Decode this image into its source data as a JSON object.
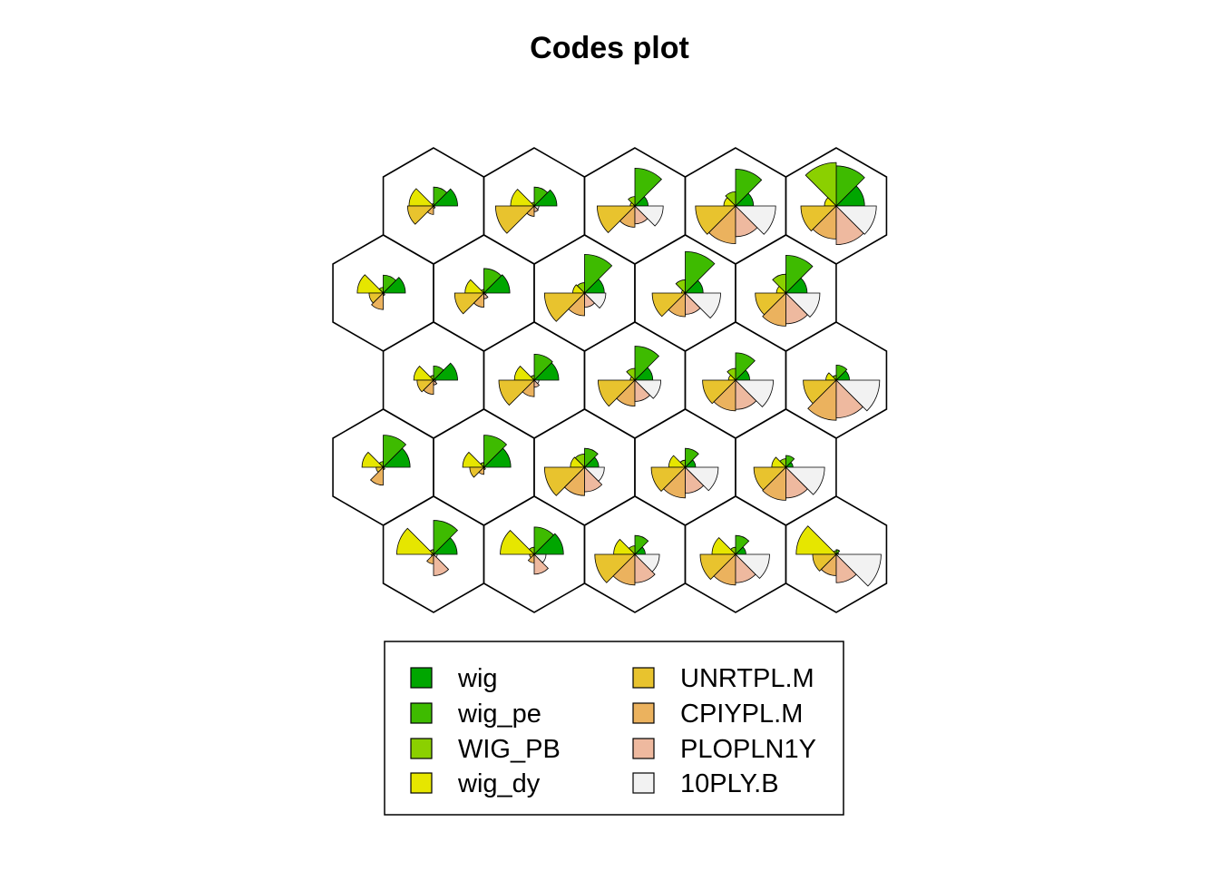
{
  "chart_data": {
    "type": "som-codes",
    "title": "Codes plot",
    "grid": {
      "rows": 5,
      "cols": 5,
      "topology": "hexagonal"
    },
    "series": [
      {
        "name": "wig",
        "color": "#00A600"
      },
      {
        "name": "wig_pe",
        "color": "#3EBB00"
      },
      {
        "name": "WIG_PB",
        "color": "#8BD000"
      },
      {
        "name": "wig_dy",
        "color": "#E6E600"
      },
      {
        "name": "UNRTPL.M",
        "color": "#E8C32E"
      },
      {
        "name": "CPIYPL.M",
        "color": "#EBB25E"
      },
      {
        "name": "PLOPLN1Y",
        "color": "#EEB99F"
      },
      {
        "name": "10PLY.B",
        "color": "#F2F2F2"
      }
    ],
    "units": [
      {
        "row": 1,
        "col": 1,
        "values": [
          0.51,
          0.4,
          0.05,
          0.52,
          0.55,
          0.18,
          0.05,
          0.02
        ]
      },
      {
        "row": 1,
        "col": 2,
        "values": [
          0.48,
          0.4,
          0.08,
          0.5,
          0.82,
          0.22,
          0.12,
          0.1
        ]
      },
      {
        "row": 1,
        "col": 3,
        "values": [
          0.28,
          0.8,
          0.2,
          0.1,
          0.8,
          0.45,
          0.38,
          0.6
        ]
      },
      {
        "row": 1,
        "col": 4,
        "values": [
          0.38,
          0.78,
          0.3,
          0.25,
          0.85,
          0.8,
          0.65,
          0.85
        ]
      },
      {
        "row": 1,
        "col": 5,
        "values": [
          0.6,
          0.85,
          0.92,
          0.25,
          0.75,
          0.7,
          0.82,
          0.85
        ]
      },
      {
        "row": 2,
        "col": 1,
        "values": [
          0.47,
          0.38,
          0.12,
          0.55,
          0.3,
          0.35,
          0.05,
          0.02
        ]
      },
      {
        "row": 2,
        "col": 2,
        "values": [
          0.55,
          0.52,
          0.08,
          0.4,
          0.62,
          0.3,
          0.12,
          0.05
        ]
      },
      {
        "row": 2,
        "col": 3,
        "values": [
          0.42,
          0.82,
          0.22,
          0.25,
          0.85,
          0.48,
          0.3,
          0.45
        ]
      },
      {
        "row": 2,
        "col": 4,
        "values": [
          0.38,
          0.88,
          0.28,
          0.08,
          0.7,
          0.5,
          0.45,
          0.75
        ]
      },
      {
        "row": 2,
        "col": 5,
        "values": [
          0.45,
          0.8,
          0.4,
          0.2,
          0.65,
          0.7,
          0.65,
          0.72
        ]
      },
      {
        "row": 3,
        "col": 1,
        "values": [
          0.51,
          0.3,
          0.1,
          0.42,
          0.35,
          0.3,
          0.1,
          0.05
        ]
      },
      {
        "row": 3,
        "col": 2,
        "values": [
          0.52,
          0.55,
          0.1,
          0.42,
          0.75,
          0.35,
          0.15,
          0.1
        ]
      },
      {
        "row": 3,
        "col": 3,
        "values": [
          0.38,
          0.72,
          0.25,
          0.1,
          0.78,
          0.55,
          0.45,
          0.55
        ]
      },
      {
        "row": 3,
        "col": 4,
        "values": [
          0.3,
          0.58,
          0.25,
          0.15,
          0.7,
          0.65,
          0.62,
          0.8
        ]
      },
      {
        "row": 3,
        "col": 5,
        "values": [
          0.28,
          0.32,
          0.1,
          0.22,
          0.7,
          0.85,
          0.8,
          0.92
        ]
      },
      {
        "row": 4,
        "col": 1,
        "values": [
          0.57,
          0.68,
          0.12,
          0.45,
          0.15,
          0.38,
          0.05,
          0.02
        ]
      },
      {
        "row": 4,
        "col": 2,
        "values": [
          0.57,
          0.68,
          0.1,
          0.45,
          0.3,
          0.15,
          0.05,
          0.02
        ]
      },
      {
        "row": 4,
        "col": 3,
        "values": [
          0.3,
          0.4,
          0.28,
          0.3,
          0.85,
          0.6,
          0.52,
          0.42
        ]
      },
      {
        "row": 4,
        "col": 4,
        "values": [
          0.22,
          0.4,
          0.15,
          0.35,
          0.72,
          0.65,
          0.55,
          0.7
        ]
      },
      {
        "row": 4,
        "col": 5,
        "values": [
          0.15,
          0.25,
          0.18,
          0.3,
          0.68,
          0.7,
          0.65,
          0.82
        ]
      },
      {
        "row": 5,
        "col": 1,
        "values": [
          0.5,
          0.72,
          0.1,
          0.78,
          0.05,
          0.2,
          0.45,
          0.08
        ]
      },
      {
        "row": 5,
        "col": 2,
        "values": [
          0.62,
          0.58,
          0.15,
          0.72,
          0.1,
          0.18,
          0.42,
          0.25
        ]
      },
      {
        "row": 5,
        "col": 3,
        "values": [
          0.22,
          0.4,
          0.18,
          0.45,
          0.85,
          0.65,
          0.6,
          0.52
        ]
      },
      {
        "row": 5,
        "col": 4,
        "values": [
          0.22,
          0.4,
          0.15,
          0.5,
          0.75,
          0.65,
          0.6,
          0.72
        ]
      },
      {
        "row": 5,
        "col": 5,
        "values": [
          0.05,
          0.1,
          0.08,
          0.85,
          0.5,
          0.45,
          0.6,
          0.95
        ]
      }
    ],
    "legend": {
      "position": "bottom",
      "columns": 2
    }
  }
}
